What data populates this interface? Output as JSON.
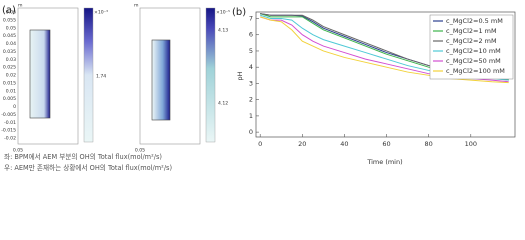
{
  "panel_a": {
    "label": "(a)",
    "plots": [
      {
        "unit": "m",
        "yticks": [
          "0.06",
          "0.055",
          "0.05",
          "0.045",
          "0.04",
          "0.035",
          "0.03",
          "0.025",
          "0.02",
          "0.015",
          "0.01",
          "0.005",
          "0",
          "-0.005",
          "-0.01",
          "-0.015",
          "-0.02"
        ],
        "xtick": "0.05",
        "scale": "×10⁻³",
        "colorbar_labels": [
          "1.74"
        ]
      },
      {
        "unit": "m",
        "xtick": "0.05",
        "scale": "×10⁻⁵",
        "colorbar_labels": [
          "4.13",
          "4.12"
        ]
      }
    ],
    "captions": [
      "좌: BPM에서 AEM 부분의 OH의 Total flux(mol/m²/s)",
      "우: AEM만 존재하는 상황에서 OH의 Total flux(mol/m²/s)"
    ]
  },
  "chart_data": {
    "type": "line",
    "panel_label": "(b)",
    "y_label": "pH",
    "x_label": "Time (min)",
    "x": [
      0,
      5,
      10,
      15,
      20,
      25,
      30,
      40,
      50,
      60,
      70,
      80,
      90,
      100,
      110,
      118
    ],
    "series": [
      {
        "name": "c_MgCl2=0.5 mM",
        "color": "#2b3f8f",
        "values": [
          7.3,
          7.2,
          7.2,
          7.2,
          7.15,
          6.8,
          6.4,
          5.9,
          5.4,
          4.9,
          4.5,
          4.1,
          3.8,
          3.6,
          3.4,
          3.3
        ]
      },
      {
        "name": "c_MgCl2=1 mM",
        "color": "#3cb44b",
        "values": [
          7.3,
          7.1,
          7.1,
          7.1,
          7.1,
          6.7,
          6.3,
          5.8,
          5.3,
          4.8,
          4.4,
          4.0,
          3.75,
          3.5,
          3.35,
          3.25
        ]
      },
      {
        "name": "c_MgCl2=2 mM",
        "color": "#666666",
        "values": [
          7.3,
          7.2,
          7.2,
          7.2,
          7.2,
          6.9,
          6.5,
          6.0,
          5.5,
          5.0,
          4.5,
          4.1,
          3.8,
          3.55,
          3.35,
          3.2
        ]
      },
      {
        "name": "c_MgCl2=10 mM",
        "color": "#4fc9d6",
        "values": [
          7.2,
          7.0,
          7.0,
          6.9,
          6.4,
          6.0,
          5.7,
          5.3,
          4.9,
          4.5,
          4.1,
          3.8,
          3.6,
          3.4,
          3.3,
          3.2
        ]
      },
      {
        "name": "c_MgCl2=50 mM",
        "color": "#d24fd2",
        "values": [
          7.1,
          6.9,
          6.9,
          6.6,
          6.0,
          5.6,
          5.3,
          4.9,
          4.5,
          4.2,
          3.9,
          3.6,
          3.45,
          3.3,
          3.2,
          3.1
        ]
      },
      {
        "name": "c_MgCl2=100 mM",
        "color": "#f2d23a",
        "values": [
          7.1,
          6.9,
          6.8,
          6.3,
          5.6,
          5.3,
          5.0,
          4.6,
          4.3,
          4.0,
          3.7,
          3.5,
          3.3,
          3.2,
          3.1,
          3.05
        ]
      }
    ],
    "xlim": [
      -2,
      121
    ],
    "ylim": [
      -0.3,
      7.4
    ],
    "xticks": [
      0,
      20,
      40,
      60,
      80,
      100
    ],
    "yticks": [
      0,
      1,
      2,
      3,
      4,
      5,
      6,
      7
    ],
    "grid": false,
    "legend": "top-right"
  }
}
